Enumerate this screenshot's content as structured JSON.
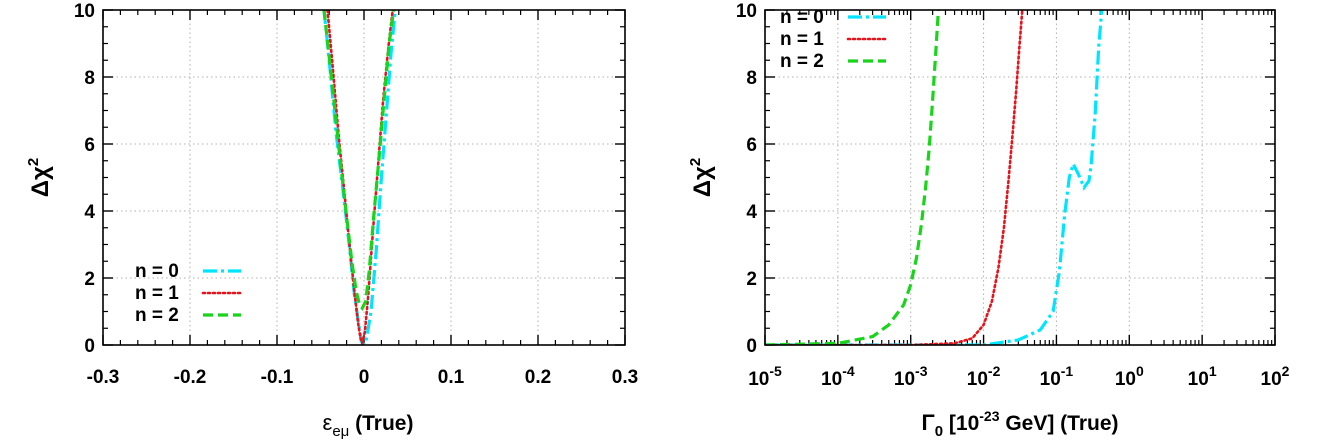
{
  "colors": {
    "n0": "#00e5ff",
    "n1": "#e8121a",
    "n2": "#19d41a"
  },
  "chart_data": [
    {
      "type": "line",
      "xlabel": "ε",
      "xlabel_sub": "eμ",
      "xlabel_suffix": " (True)",
      "ylabel": "Δχ",
      "ylabel_sup": "2",
      "xlim": [
        -0.3,
        0.3
      ],
      "ylim": [
        0,
        10
      ],
      "xticks": [
        -0.3,
        -0.2,
        -0.1,
        0,
        0.1,
        0.2,
        0.3
      ],
      "xtick_labels": [
        "-0.3",
        "-0.2",
        "-0.1",
        "0",
        "0.1",
        "0.2",
        "0.3"
      ],
      "yticks": [
        0,
        2,
        4,
        6,
        8,
        10
      ],
      "ytick_labels": [
        "0",
        "2",
        "4",
        "6",
        "8",
        "10"
      ],
      "grid": true,
      "legend_position": "bottom-left",
      "series": [
        {
          "name": "n = 0",
          "style": "dashdot",
          "color": "#00e5ff",
          "x": [
            -0.046,
            -0.04,
            -0.032,
            -0.024,
            -0.017,
            -0.011,
            -0.006,
            -0.003,
            0.0,
            0.003,
            0.008,
            0.014,
            0.02,
            0.026,
            0.031,
            0.036
          ],
          "y": [
            10,
            8.5,
            6.3,
            4.6,
            3.0,
            1.5,
            0.6,
            0.1,
            0.0,
            0.2,
            1.0,
            2.8,
            5.0,
            7.0,
            8.7,
            10
          ]
        },
        {
          "name": "n = 1",
          "style": "dotted",
          "color": "#e8121a",
          "x": [
            -0.042,
            -0.036,
            -0.029,
            -0.022,
            -0.016,
            -0.011,
            -0.007,
            -0.004,
            -0.002,
            0.001,
            0.005,
            0.01,
            0.016,
            0.022,
            0.028,
            0.033
          ],
          "y": [
            10,
            8.3,
            6.2,
            4.4,
            2.8,
            1.6,
            0.7,
            0.2,
            0.05,
            0.4,
            1.5,
            3.3,
            5.3,
            7.3,
            8.9,
            10
          ]
        },
        {
          "name": "n = 2",
          "style": "dashed",
          "color": "#19d41a",
          "x": [
            -0.046,
            -0.04,
            -0.033,
            -0.026,
            -0.019,
            -0.014,
            -0.009,
            -0.005,
            -0.002,
            0.002,
            0.006,
            0.011,
            0.017,
            0.023,
            0.029,
            0.034
          ],
          "y": [
            10,
            8.6,
            6.9,
            5.2,
            3.6,
            2.5,
            1.6,
            1.2,
            1.1,
            1.3,
            2.2,
            3.8,
            5.5,
            7.3,
            9.0,
            10
          ]
        }
      ]
    },
    {
      "type": "line",
      "xlabel": "Γ",
      "xlabel_sub": "0",
      "xlabel_mid": " [10",
      "xlabel_sup": "-23",
      "xlabel_suffix": " GeV] (True)",
      "ylabel": "Δχ",
      "ylabel_sup": "2",
      "xscale": "log",
      "xlim": [
        1e-05,
        100
      ],
      "ylim": [
        0,
        10
      ],
      "xtick_exponents": [
        -5,
        -4,
        -3,
        -2,
        -1,
        0,
        1,
        2
      ],
      "xtick_base": "10",
      "yticks": [
        0,
        2,
        4,
        6,
        8,
        10
      ],
      "ytick_labels": [
        "0",
        "2",
        "4",
        "6",
        "8",
        "10"
      ],
      "grid": true,
      "legend_position": "top-left",
      "series": [
        {
          "name": "n = 0",
          "style": "dashdot",
          "color": "#00e5ff",
          "x": [
            1e-05,
            0.001,
            0.01,
            0.03,
            0.06,
            0.09,
            0.11,
            0.13,
            0.15,
            0.17,
            0.2,
            0.24,
            0.28,
            0.3,
            0.34,
            0.38,
            0.42
          ],
          "y": [
            0,
            0,
            0,
            0.15,
            0.45,
            1.0,
            2.2,
            3.9,
            5.0,
            5.4,
            5.1,
            4.7,
            4.9,
            5.4,
            6.9,
            8.9,
            10
          ]
        },
        {
          "name": "n = 1",
          "style": "dotted",
          "color": "#e8121a",
          "x": [
            1e-05,
            0.001,
            0.004,
            0.007,
            0.01,
            0.013,
            0.016,
            0.019,
            0.022,
            0.025,
            0.028,
            0.031,
            0.034
          ],
          "y": [
            0,
            0,
            0.05,
            0.2,
            0.6,
            1.3,
            2.3,
            3.5,
            4.9,
            6.3,
            7.6,
            8.9,
            10
          ]
        },
        {
          "name": "n = 2",
          "style": "dashed",
          "color": "#19d41a",
          "x": [
            1e-05,
            0.0001,
            0.0003,
            0.0005,
            0.0008,
            0.001,
            0.0012,
            0.0014,
            0.0016,
            0.0018,
            0.002,
            0.0022,
            0.0024
          ],
          "y": [
            0,
            0.05,
            0.25,
            0.6,
            1.2,
            1.8,
            2.6,
            3.6,
            4.7,
            5.9,
            7.3,
            8.7,
            10
          ]
        }
      ]
    }
  ]
}
